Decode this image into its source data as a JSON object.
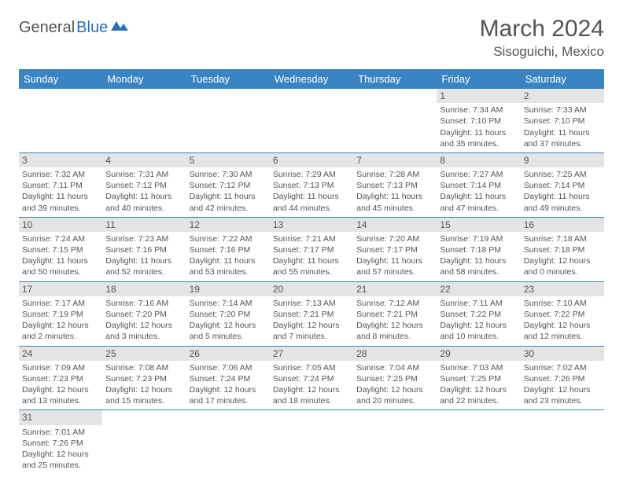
{
  "logo": {
    "part1": "General",
    "part2": "Blue"
  },
  "title": "March 2024",
  "location": "Sisoguichi, Mexico",
  "colors": {
    "header_bg": "#3b84c4",
    "header_text": "#ffffff",
    "daynum_bg": "#e4e4e4",
    "border": "#3b84c4",
    "text": "#555555",
    "logo_accent": "#2a6fb5"
  },
  "day_headers": [
    "Sunday",
    "Monday",
    "Tuesday",
    "Wednesday",
    "Thursday",
    "Friday",
    "Saturday"
  ],
  "weeks": [
    [
      null,
      null,
      null,
      null,
      null,
      {
        "n": "1",
        "sr": "Sunrise: 7:34 AM",
        "ss": "Sunset: 7:10 PM",
        "d1": "Daylight: 11 hours",
        "d2": "and 35 minutes."
      },
      {
        "n": "2",
        "sr": "Sunrise: 7:33 AM",
        "ss": "Sunset: 7:10 PM",
        "d1": "Daylight: 11 hours",
        "d2": "and 37 minutes."
      }
    ],
    [
      {
        "n": "3",
        "sr": "Sunrise: 7:32 AM",
        "ss": "Sunset: 7:11 PM",
        "d1": "Daylight: 11 hours",
        "d2": "and 39 minutes."
      },
      {
        "n": "4",
        "sr": "Sunrise: 7:31 AM",
        "ss": "Sunset: 7:12 PM",
        "d1": "Daylight: 11 hours",
        "d2": "and 40 minutes."
      },
      {
        "n": "5",
        "sr": "Sunrise: 7:30 AM",
        "ss": "Sunset: 7:12 PM",
        "d1": "Daylight: 11 hours",
        "d2": "and 42 minutes."
      },
      {
        "n": "6",
        "sr": "Sunrise: 7:29 AM",
        "ss": "Sunset: 7:13 PM",
        "d1": "Daylight: 11 hours",
        "d2": "and 44 minutes."
      },
      {
        "n": "7",
        "sr": "Sunrise: 7:28 AM",
        "ss": "Sunset: 7:13 PM",
        "d1": "Daylight: 11 hours",
        "d2": "and 45 minutes."
      },
      {
        "n": "8",
        "sr": "Sunrise: 7:27 AM",
        "ss": "Sunset: 7:14 PM",
        "d1": "Daylight: 11 hours",
        "d2": "and 47 minutes."
      },
      {
        "n": "9",
        "sr": "Sunrise: 7:25 AM",
        "ss": "Sunset: 7:14 PM",
        "d1": "Daylight: 11 hours",
        "d2": "and 49 minutes."
      }
    ],
    [
      {
        "n": "10",
        "sr": "Sunrise: 7:24 AM",
        "ss": "Sunset: 7:15 PM",
        "d1": "Daylight: 11 hours",
        "d2": "and 50 minutes."
      },
      {
        "n": "11",
        "sr": "Sunrise: 7:23 AM",
        "ss": "Sunset: 7:16 PM",
        "d1": "Daylight: 11 hours",
        "d2": "and 52 minutes."
      },
      {
        "n": "12",
        "sr": "Sunrise: 7:22 AM",
        "ss": "Sunset: 7:16 PM",
        "d1": "Daylight: 11 hours",
        "d2": "and 53 minutes."
      },
      {
        "n": "13",
        "sr": "Sunrise: 7:21 AM",
        "ss": "Sunset: 7:17 PM",
        "d1": "Daylight: 11 hours",
        "d2": "and 55 minutes."
      },
      {
        "n": "14",
        "sr": "Sunrise: 7:20 AM",
        "ss": "Sunset: 7:17 PM",
        "d1": "Daylight: 11 hours",
        "d2": "and 57 minutes."
      },
      {
        "n": "15",
        "sr": "Sunrise: 7:19 AM",
        "ss": "Sunset: 7:18 PM",
        "d1": "Daylight: 11 hours",
        "d2": "and 58 minutes."
      },
      {
        "n": "16",
        "sr": "Sunrise: 7:18 AM",
        "ss": "Sunset: 7:18 PM",
        "d1": "Daylight: 12 hours",
        "d2": "and 0 minutes."
      }
    ],
    [
      {
        "n": "17",
        "sr": "Sunrise: 7:17 AM",
        "ss": "Sunset: 7:19 PM",
        "d1": "Daylight: 12 hours",
        "d2": "and 2 minutes."
      },
      {
        "n": "18",
        "sr": "Sunrise: 7:16 AM",
        "ss": "Sunset: 7:20 PM",
        "d1": "Daylight: 12 hours",
        "d2": "and 3 minutes."
      },
      {
        "n": "19",
        "sr": "Sunrise: 7:14 AM",
        "ss": "Sunset: 7:20 PM",
        "d1": "Daylight: 12 hours",
        "d2": "and 5 minutes."
      },
      {
        "n": "20",
        "sr": "Sunrise: 7:13 AM",
        "ss": "Sunset: 7:21 PM",
        "d1": "Daylight: 12 hours",
        "d2": "and 7 minutes."
      },
      {
        "n": "21",
        "sr": "Sunrise: 7:12 AM",
        "ss": "Sunset: 7:21 PM",
        "d1": "Daylight: 12 hours",
        "d2": "and 8 minutes."
      },
      {
        "n": "22",
        "sr": "Sunrise: 7:11 AM",
        "ss": "Sunset: 7:22 PM",
        "d1": "Daylight: 12 hours",
        "d2": "and 10 minutes."
      },
      {
        "n": "23",
        "sr": "Sunrise: 7:10 AM",
        "ss": "Sunset: 7:22 PM",
        "d1": "Daylight: 12 hours",
        "d2": "and 12 minutes."
      }
    ],
    [
      {
        "n": "24",
        "sr": "Sunrise: 7:09 AM",
        "ss": "Sunset: 7:23 PM",
        "d1": "Daylight: 12 hours",
        "d2": "and 13 minutes."
      },
      {
        "n": "25",
        "sr": "Sunrise: 7:08 AM",
        "ss": "Sunset: 7:23 PM",
        "d1": "Daylight: 12 hours",
        "d2": "and 15 minutes."
      },
      {
        "n": "26",
        "sr": "Sunrise: 7:06 AM",
        "ss": "Sunset: 7:24 PM",
        "d1": "Daylight: 12 hours",
        "d2": "and 17 minutes."
      },
      {
        "n": "27",
        "sr": "Sunrise: 7:05 AM",
        "ss": "Sunset: 7:24 PM",
        "d1": "Daylight: 12 hours",
        "d2": "and 18 minutes."
      },
      {
        "n": "28",
        "sr": "Sunrise: 7:04 AM",
        "ss": "Sunset: 7:25 PM",
        "d1": "Daylight: 12 hours",
        "d2": "and 20 minutes."
      },
      {
        "n": "29",
        "sr": "Sunrise: 7:03 AM",
        "ss": "Sunset: 7:25 PM",
        "d1": "Daylight: 12 hours",
        "d2": "and 22 minutes."
      },
      {
        "n": "30",
        "sr": "Sunrise: 7:02 AM",
        "ss": "Sunset: 7:26 PM",
        "d1": "Daylight: 12 hours",
        "d2": "and 23 minutes."
      }
    ],
    [
      {
        "n": "31",
        "sr": "Sunrise: 7:01 AM",
        "ss": "Sunset: 7:26 PM",
        "d1": "Daylight: 12 hours",
        "d2": "and 25 minutes."
      },
      null,
      null,
      null,
      null,
      null,
      null
    ]
  ]
}
